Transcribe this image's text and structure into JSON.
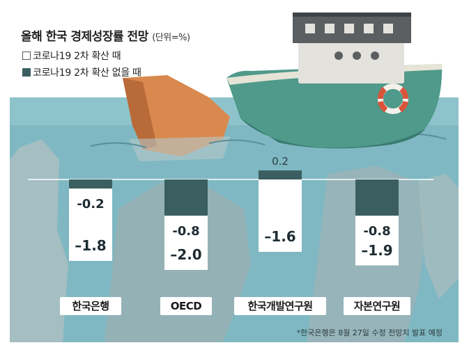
{
  "title": "올해 한국 경제성장률 전망",
  "unit": "(단위=%)",
  "legend": {
    "white_label": "코로나19 2차 확산 때",
    "dark_label": "코로나19 2차 확산 없을 때"
  },
  "footnote": "*한국은행은 8월 27일 수정 전망치 발표 예정",
  "colors": {
    "sea": "#7fb8c2",
    "bar_dark": "#3b5f60",
    "bar_white": "#ffffff",
    "boat_hull": "#4f9a8a",
    "rock_orange": "#d9894e",
    "iceberg": "#9fb7ba"
  },
  "chart_data": {
    "type": "bar",
    "title": "올해 한국 경제성장률 전망",
    "unit": "(단위=%)",
    "categories": [
      "한국은행",
      "OECD",
      "한국개발연구원",
      "자본연구원"
    ],
    "series": [
      {
        "name": "코로나19 2차 확산 없을 때",
        "values": [
          -0.2,
          -0.8,
          0.2,
          -0.8
        ]
      },
      {
        "name": "코로나19 2차 확산 때",
        "values": [
          -1.8,
          -2.0,
          -1.6,
          -1.9
        ]
      }
    ],
    "labels": {
      "no_second_wave": [
        "-0.2",
        "-0.8",
        "0.2",
        "-0.8"
      ],
      "second_wave": [
        "–1.8",
        "–2.0",
        "–1.6",
        "–1.9"
      ]
    },
    "ylim": [
      -2.0,
      0.2
    ],
    "legend_position": "top-left"
  }
}
